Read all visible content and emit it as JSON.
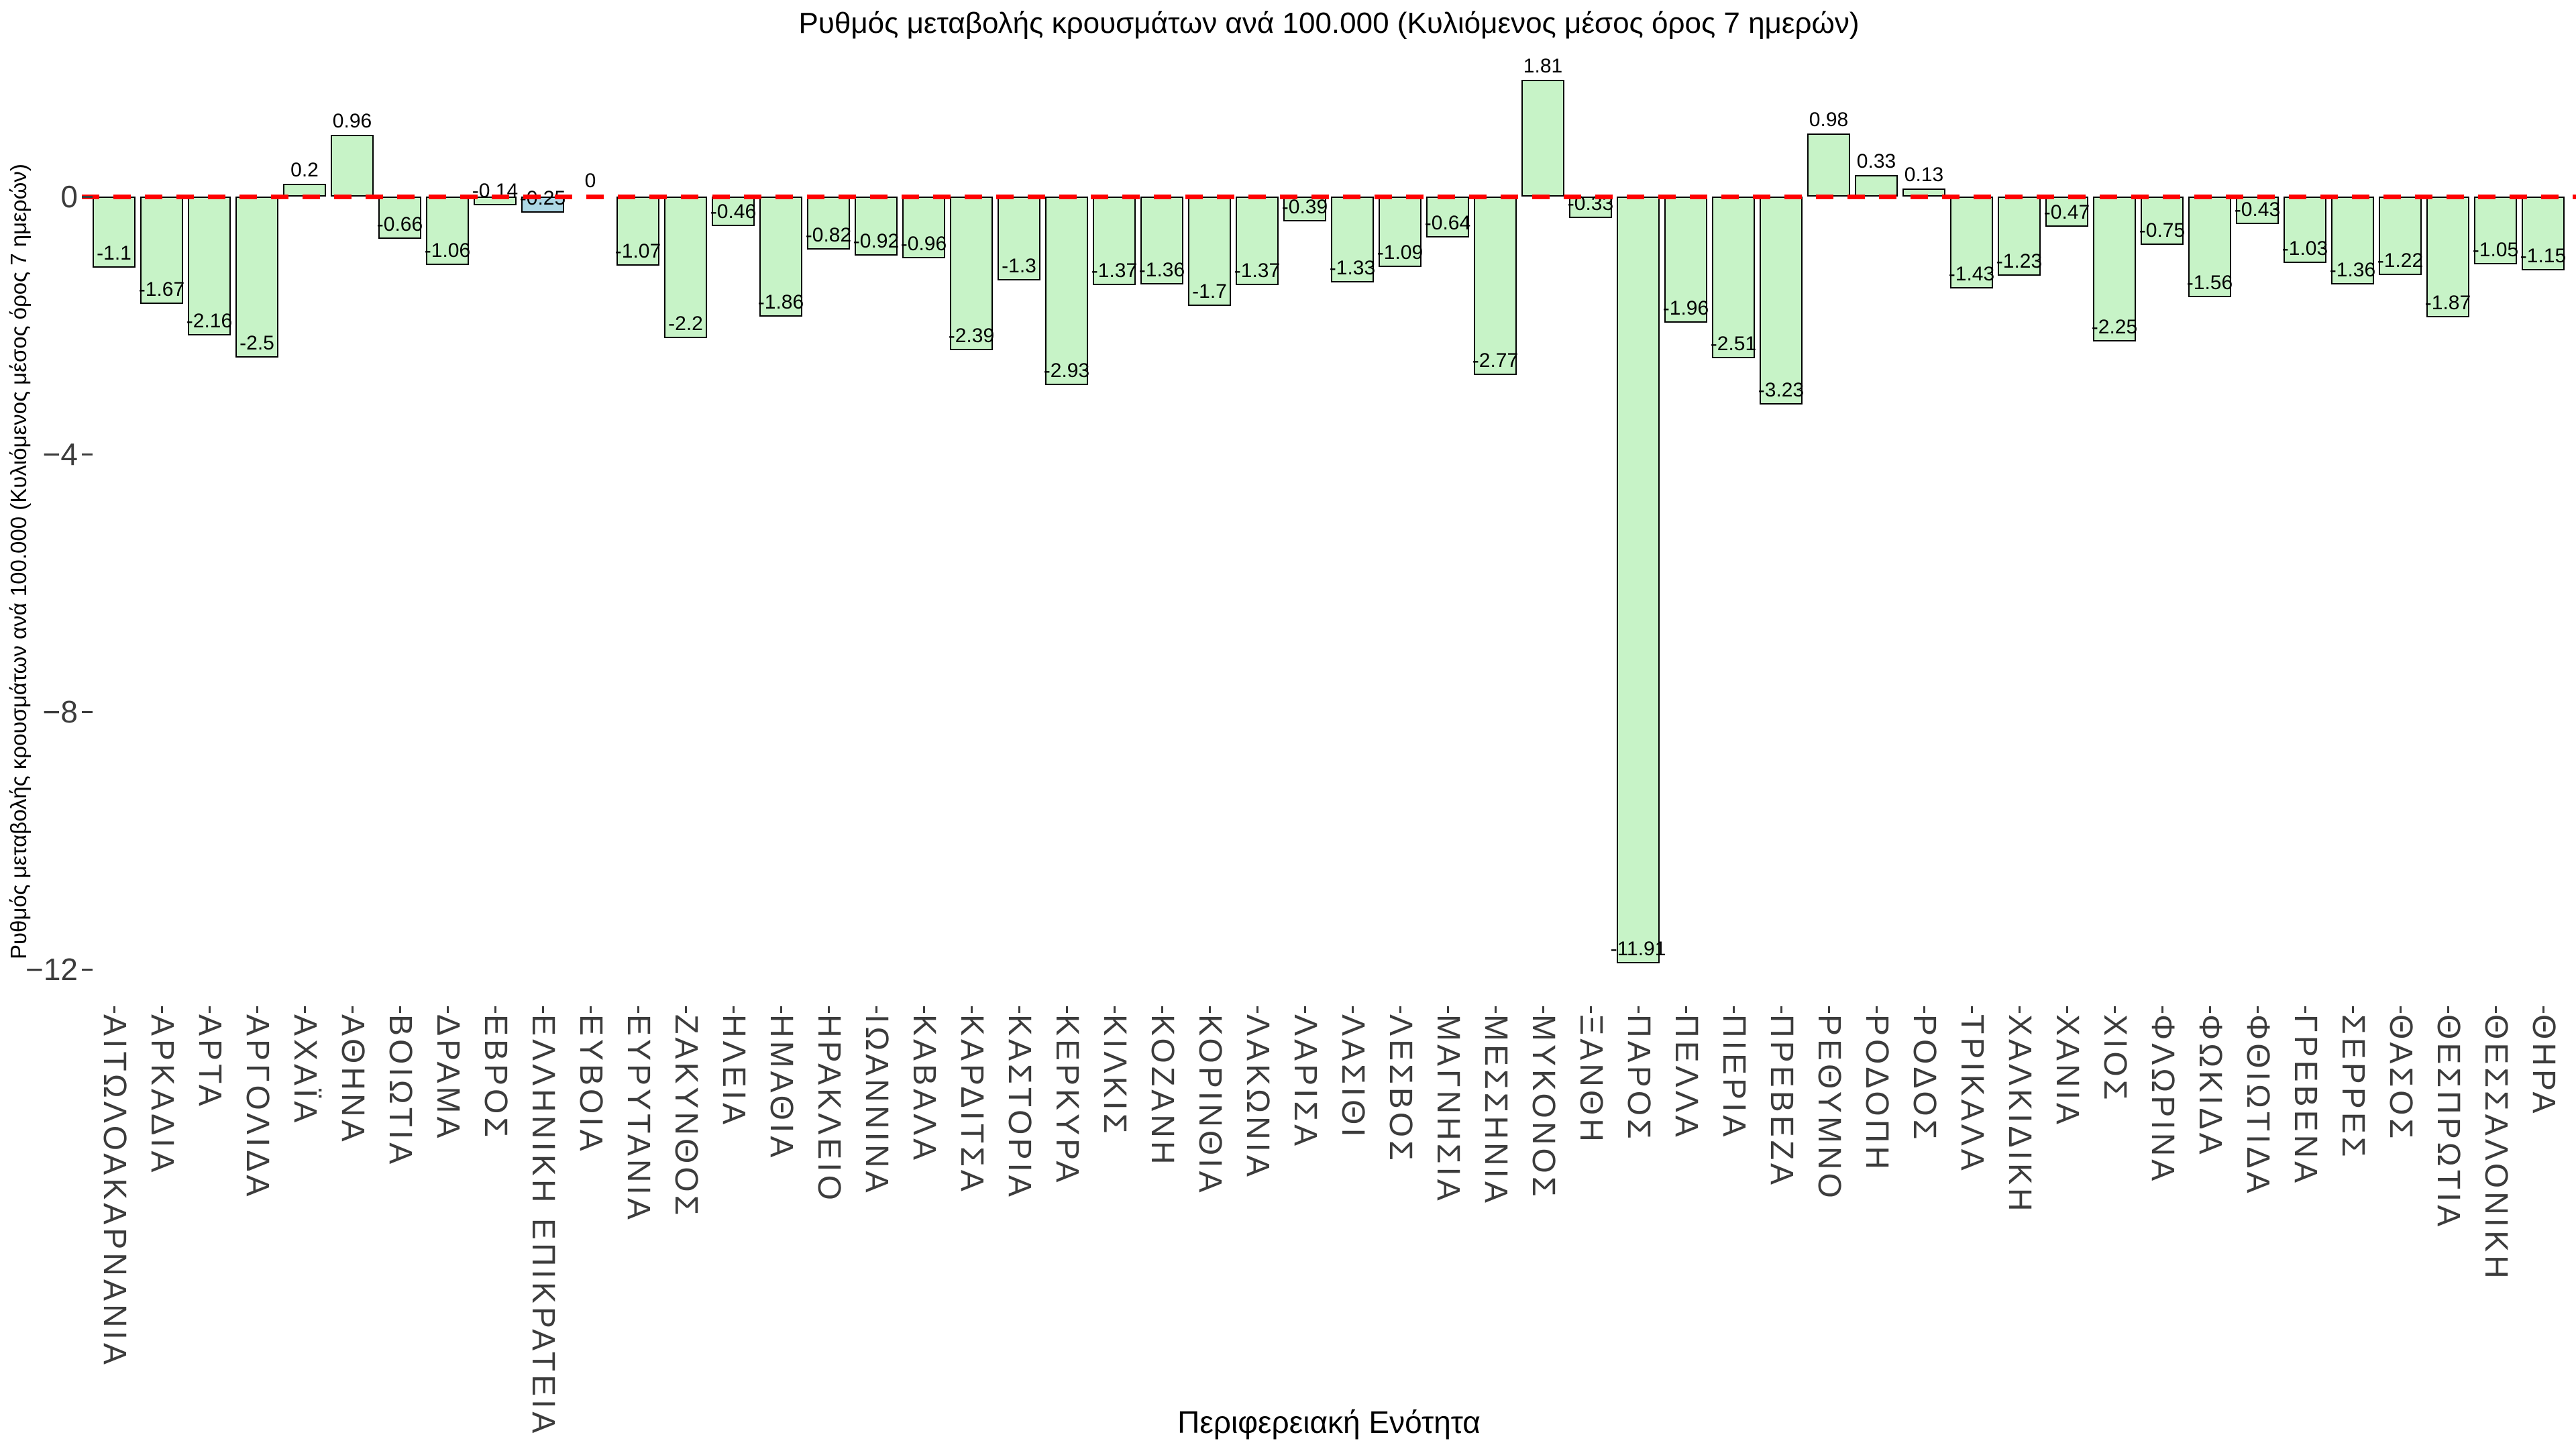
{
  "title": "Ρυθμός μεταβολής κρουσμάτων ανά 100.000 (Κυλιόμενος μέσος όρος 7 ημερών)",
  "y_axis": {
    "label": "Ρυθμός μεταβολής κρουσμάτων ανά 100.000 (Κυλιόμενος μέσος όρος 7 ημερών)",
    "tick_labels": [
      "0",
      "−4",
      "−8",
      "−12"
    ],
    "tick_values": [
      0,
      -4,
      -8,
      -12
    ]
  },
  "x_axis": {
    "label": "Περιφερειακή Ενότητα"
  },
  "colors": {
    "background": "#ffffff",
    "bar_fill": "#c7f3c7",
    "bar_edge": "#000000",
    "highlight_fill": "#add8e6",
    "zero_line": "#ff0000",
    "tick_text": "#3c3c3c",
    "text": "#000000"
  },
  "chart_data": {
    "type": "bar",
    "title": "Ρυθμός μεταβολής κρουσμάτων ανά 100.000 (Κυλιόμενος μέσος όρος 7 ημερών)",
    "xlabel": "Περιφερειακή Ενότητα",
    "ylabel": "Ρυθμός μεταβολής κρουσμάτων ανά 100.000 (Κυλιόμενος μέσος όρος 7 ημερών)",
    "ylim": [
      -12.6,
      2.45
    ],
    "grid": false,
    "legend": "none",
    "zero_reference_line": {
      "y": 0,
      "style": "dashed",
      "color": "#ff0000"
    },
    "highlight_category": "ΕΛΛΗΝΙΚΗ ΕΠΙΚΡΑΤΕΙΑ",
    "categories": [
      "ΑΙΤΩΛΟΑΚΑΡΝΑΝΙΑ",
      "ΑΡΚΑΔΙΑ",
      "ΑΡΤΑ",
      "ΑΡΓΟΛΙΔΑ",
      "ΑΧΑΪΑ",
      "ΑΘΗΝΑ",
      "ΒΟΙΩΤΙΑ",
      "ΔΡΑΜΑ",
      "ΕΒΡΟΣ",
      "ΕΛΛΗΝΙΚΗ ΕΠΙΚΡΑΤΕΙΑ",
      "ΕΥΒΟΙΑ",
      "ΕΥΡΥΤΑΝΙΑ",
      "ΖΑΚΥΝΘΟΣ",
      "ΗΛΕΙΑ",
      "ΗΜΑΘΙΑ",
      "ΗΡΑΚΛΕΙΟ",
      "ΙΩΑΝΝΙΝΑ",
      "ΚΑΒΑΛΑ",
      "ΚΑΡΔΙΤΣΑ",
      "ΚΑΣΤΟΡΙΑ",
      "ΚΕΡΚΥΡΑ",
      "ΚΙΛΚΙΣ",
      "ΚΟΖΑΝΗ",
      "ΚΟΡΙΝΘΙΑ",
      "ΛΑΚΩΝΙΑ",
      "ΛΑΡΙΣΑ",
      "ΛΑΣΙΘΙ",
      "ΛΕΣΒΟΣ",
      "ΜΑΓΝΗΣΙΑ",
      "ΜΕΣΣΗΝΙΑ",
      "ΜΥΚΟΝΟΣ",
      "ΞΑΝΘΗ",
      "ΠΑΡΟΣ",
      "ΠΕΛΛΑ",
      "ΠΙΕΡΙΑ",
      "ΠΡΕΒΕΖΑ",
      "ΡΕΘΥΜΝΟ",
      "ΡΟΔΟΠΗ",
      "ΡΟΔΟΣ",
      "ΤΡΙΚΑΛΑ",
      "ΧΑΛΚΙΔΙΚΗ",
      "ΧΑΝΙΑ",
      "ΧΙΟΣ",
      "ΦΛΩΡΙΝΑ",
      "ΦΩΚΙΔΑ",
      "ΦΘΙΩΤΙΔΑ",
      "ΓΡΕΒΕΝΑ",
      "ΣΕΡΡΕΣ",
      "ΘΑΣΟΣ",
      "ΘΕΣΠΡΩΤΙΑ",
      "ΘΕΣΣΑΛΟΝΙΚΗ",
      "ΘΗΡΑ"
    ],
    "values": [
      -1.1,
      -1.67,
      -2.16,
      -2.5,
      0.2,
      0.96,
      -0.66,
      -1.06,
      -0.14,
      -0.25,
      0,
      -1.07,
      -2.2,
      -0.46,
      -1.86,
      -0.82,
      -0.92,
      -0.96,
      -2.39,
      -1.3,
      -2.93,
      -1.37,
      -1.36,
      -1.7,
      -1.37,
      -0.39,
      -1.33,
      -1.09,
      -0.64,
      -2.77,
      1.81,
      -0.33,
      -11.91,
      -1.96,
      -2.51,
      -3.23,
      0.98,
      0.33,
      0.13,
      -1.43,
      -1.23,
      -0.47,
      -2.25,
      -0.75,
      -1.56,
      -0.43,
      -1.03,
      -1.36,
      -1.22,
      -1.87,
      -1.05,
      -1.15
    ],
    "value_labels": [
      "-1.1",
      "-1.67",
      "-2.16",
      "-2.5",
      "0.2",
      "0.96",
      "-0.66",
      "-1.06",
      "-0.14",
      "-0.25",
      "0",
      "-1.07",
      "-2.2",
      "-0.46",
      "-1.86",
      "-0.82",
      "-0.92",
      "-0.96",
      "-2.39",
      "-1.3",
      "-2.93",
      "-1.37",
      "-1.36",
      "-1.7",
      "-1.37",
      "-0.39",
      "-1.33",
      "-1.09",
      "-0.64",
      "-2.77",
      "1.81",
      "-0.33",
      "-11.91",
      "-1.96",
      "-2.51",
      "-3.23",
      "0.98",
      "0.33",
      "0.13",
      "-1.43",
      "-1.23",
      "-0.47",
      "-2.25",
      "-0.75",
      "-1.56",
      "-0.43",
      "-1.03",
      "-1.36",
      "-1.22",
      "-1.87",
      "-1.05",
      "-1.15"
    ]
  }
}
